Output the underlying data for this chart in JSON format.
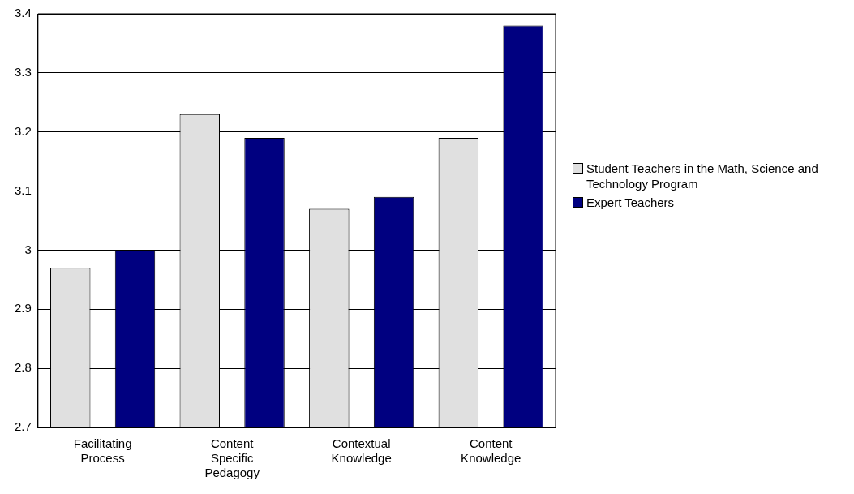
{
  "chart_data": {
    "type": "bar",
    "categories": [
      "Facilitating Process",
      "Content Specific Pedagogy",
      "Contextual Knowledge",
      "Content Knowledge"
    ],
    "series": [
      {
        "name": "Student Teachers in the Math, Science and Technology Program",
        "color": "#e0e0e0",
        "values": [
          2.97,
          3.23,
          3.07,
          3.19
        ]
      },
      {
        "name": "Expert Teachers",
        "color": "#000080",
        "values": [
          3.0,
          3.19,
          3.09,
          3.38
        ]
      }
    ],
    "ylim": [
      2.7,
      3.4
    ],
    "yticks": [
      2.7,
      2.8,
      2.9,
      3,
      3.1,
      3.2,
      3.3,
      3.4
    ],
    "grid": "y",
    "legend": "right"
  }
}
